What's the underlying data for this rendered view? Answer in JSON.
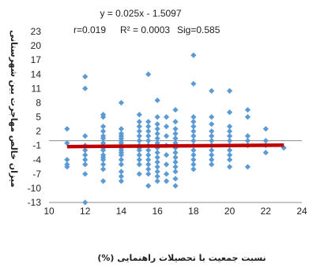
{
  "chart_data": {
    "type": "scatter",
    "title": "",
    "equation": "y = 0.025x - 1.5097",
    "stats": {
      "r": "r=0.019",
      "r2": "R² = 0.0003",
      "sig": "Sig=0.585"
    },
    "xlabel": "نسبت جمعیت با تحصیلات راهنمایی (%)",
    "ylabel": "میزان خالص مهاجرت بین شهرستانی",
    "xlim": [
      10,
      24
    ],
    "ylim": [
      -13,
      23
    ],
    "xticks": [
      10,
      12,
      14,
      16,
      18,
      20,
      22,
      24
    ],
    "yticks": [
      23,
      20,
      17,
      14,
      11,
      8,
      5,
      2,
      -1,
      -4,
      -7,
      -10,
      -13
    ],
    "grid": false,
    "reference_line_y": 0,
    "trendline": {
      "slope": 0.025,
      "intercept": -1.5097,
      "x_range": [
        11,
        23
      ],
      "color": "#c00000"
    },
    "series": [
      {
        "color": "#5b9bd5",
        "points": [
          [
            11,
            2.5
          ],
          [
            11,
            -0.5
          ],
          [
            11,
            -4
          ],
          [
            11,
            -5
          ],
          [
            11,
            -5.5
          ],
          [
            12,
            13.5
          ],
          [
            12,
            11
          ],
          [
            12,
            1
          ],
          [
            12,
            -1
          ],
          [
            12,
            -2
          ],
          [
            12,
            -3
          ],
          [
            12,
            -4
          ],
          [
            12,
            -5
          ],
          [
            12,
            -7
          ],
          [
            12,
            -13
          ],
          [
            13,
            5.5
          ],
          [
            13,
            5
          ],
          [
            13,
            3
          ],
          [
            13,
            2
          ],
          [
            13,
            1
          ],
          [
            13,
            0.5
          ],
          [
            13,
            -0.5
          ],
          [
            13,
            -1
          ],
          [
            13,
            -1.5
          ],
          [
            13,
            -2
          ],
          [
            13,
            -3
          ],
          [
            13,
            -3.5
          ],
          [
            13,
            -4
          ],
          [
            13,
            -5
          ],
          [
            13,
            -6
          ],
          [
            13,
            -8.5
          ],
          [
            14,
            8
          ],
          [
            14,
            2.5
          ],
          [
            14,
            1.5
          ],
          [
            14,
            1
          ],
          [
            14,
            0.5
          ],
          [
            14,
            0
          ],
          [
            14,
            -0.5
          ],
          [
            14,
            -1
          ],
          [
            14,
            -1.5
          ],
          [
            14,
            -2
          ],
          [
            14,
            -2.5
          ],
          [
            14,
            -3
          ],
          [
            14,
            -4
          ],
          [
            14,
            -5
          ],
          [
            14,
            -6.5
          ],
          [
            14,
            -7.5
          ],
          [
            14,
            -8.5
          ],
          [
            15,
            5.5
          ],
          [
            15,
            4
          ],
          [
            15,
            3
          ],
          [
            15,
            2
          ],
          [
            15,
            1
          ],
          [
            15,
            0
          ],
          [
            15,
            -1
          ],
          [
            15,
            -1.5
          ],
          [
            15,
            -2
          ],
          [
            15,
            -3
          ],
          [
            15,
            -4
          ],
          [
            15,
            -5
          ],
          [
            15,
            -7
          ],
          [
            15.5,
            14
          ],
          [
            15.5,
            4
          ],
          [
            15.5,
            3
          ],
          [
            15.5,
            2
          ],
          [
            15.5,
            1
          ],
          [
            15.5,
            0
          ],
          [
            15.5,
            -1
          ],
          [
            15.5,
            -2
          ],
          [
            15.5,
            -3
          ],
          [
            15.5,
            -4
          ],
          [
            15.5,
            -5
          ],
          [
            15.5,
            -6
          ],
          [
            15.5,
            -7
          ],
          [
            15.5,
            -9.5
          ],
          [
            16,
            8.5
          ],
          [
            16,
            5
          ],
          [
            16,
            3.5
          ],
          [
            16,
            2.5
          ],
          [
            16,
            1.5
          ],
          [
            16,
            0.5
          ],
          [
            16,
            -0.5
          ],
          [
            16,
            -1.5
          ],
          [
            16,
            -2.5
          ],
          [
            16,
            -3.5
          ],
          [
            16,
            -4.5
          ],
          [
            16,
            -5.5
          ],
          [
            16,
            -6.5
          ],
          [
            16,
            -7.5
          ],
          [
            16,
            -8.5
          ],
          [
            16.5,
            5
          ],
          [
            16.5,
            3
          ],
          [
            16.5,
            1
          ],
          [
            16.5,
            -1
          ],
          [
            16.5,
            -3
          ],
          [
            16.5,
            -5
          ],
          [
            16.5,
            -7
          ],
          [
            16.5,
            -8.5
          ],
          [
            17,
            6.5
          ],
          [
            17,
            4
          ],
          [
            17,
            2.5
          ],
          [
            17,
            1.5
          ],
          [
            17,
            0.5
          ],
          [
            17,
            -0.5
          ],
          [
            17,
            -1.5
          ],
          [
            17,
            -2.5
          ],
          [
            17,
            -3.5
          ],
          [
            17,
            -4.5
          ],
          [
            17,
            -5.5
          ],
          [
            17,
            -6.5
          ],
          [
            17,
            -8
          ],
          [
            17,
            -9.5
          ],
          [
            18,
            18
          ],
          [
            18,
            12
          ],
          [
            18,
            5
          ],
          [
            18,
            4
          ],
          [
            18,
            3
          ],
          [
            18,
            2
          ],
          [
            18,
            1
          ],
          [
            18,
            0
          ],
          [
            18,
            -1
          ],
          [
            18,
            -2
          ],
          [
            18,
            -3
          ],
          [
            18,
            -4
          ],
          [
            18,
            -5
          ],
          [
            18,
            -6
          ],
          [
            19,
            10.5
          ],
          [
            19,
            5
          ],
          [
            19,
            3.5
          ],
          [
            19,
            2
          ],
          [
            19,
            1
          ],
          [
            19,
            0
          ],
          [
            19,
            -1
          ],
          [
            19,
            -2
          ],
          [
            19,
            -3
          ],
          [
            19,
            -4
          ],
          [
            19,
            -5
          ],
          [
            20,
            10.5
          ],
          [
            20,
            6
          ],
          [
            20,
            3
          ],
          [
            20,
            2
          ],
          [
            20,
            1
          ],
          [
            20,
            0
          ],
          [
            20,
            -1
          ],
          [
            20,
            -2
          ],
          [
            20,
            -3
          ],
          [
            20,
            -4
          ],
          [
            20,
            -5.5
          ],
          [
            21,
            6.5
          ],
          [
            21,
            5
          ],
          [
            21,
            1
          ],
          [
            21,
            0
          ],
          [
            21,
            -1
          ],
          [
            21,
            -5.5
          ],
          [
            22,
            2.5
          ],
          [
            22,
            0
          ],
          [
            22,
            -1
          ],
          [
            22,
            -2.5
          ],
          [
            23,
            -1.5
          ]
        ]
      }
    ]
  }
}
